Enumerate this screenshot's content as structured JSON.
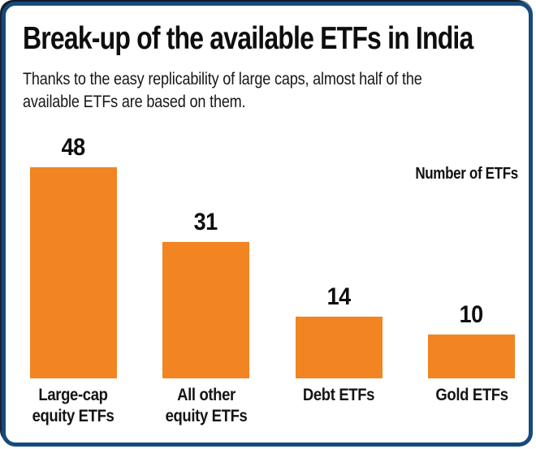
{
  "chart_data": {
    "type": "bar",
    "title": "Break-up of the available ETFs in India",
    "subtitle_lines": [
      "Thanks to the easy replicability of large caps, almost half of the",
      "available ETFs are based on them."
    ],
    "note": "Number of ETFs",
    "categories": [
      "Large-cap equity ETFs",
      "All other equity ETFs",
      "Debt ETFs",
      "Gold ETFs"
    ],
    "category_label_lines": [
      [
        "Large-cap",
        "equity ETFs"
      ],
      [
        "All other",
        "equity ETFs"
      ],
      [
        "Debt ETFs"
      ],
      [
        "Gold ETFs"
      ]
    ],
    "values": [
      48,
      31,
      14,
      10
    ],
    "value_labels_shown": true,
    "bar_color": "#F28422",
    "xlabel": "",
    "ylabel": "",
    "ylim": [
      0,
      50
    ],
    "grid": false,
    "legend": "none"
  },
  "frame": {
    "border_color": "#164A7E",
    "background_color": "#FFFFFF",
    "text_color": "#121212"
  }
}
